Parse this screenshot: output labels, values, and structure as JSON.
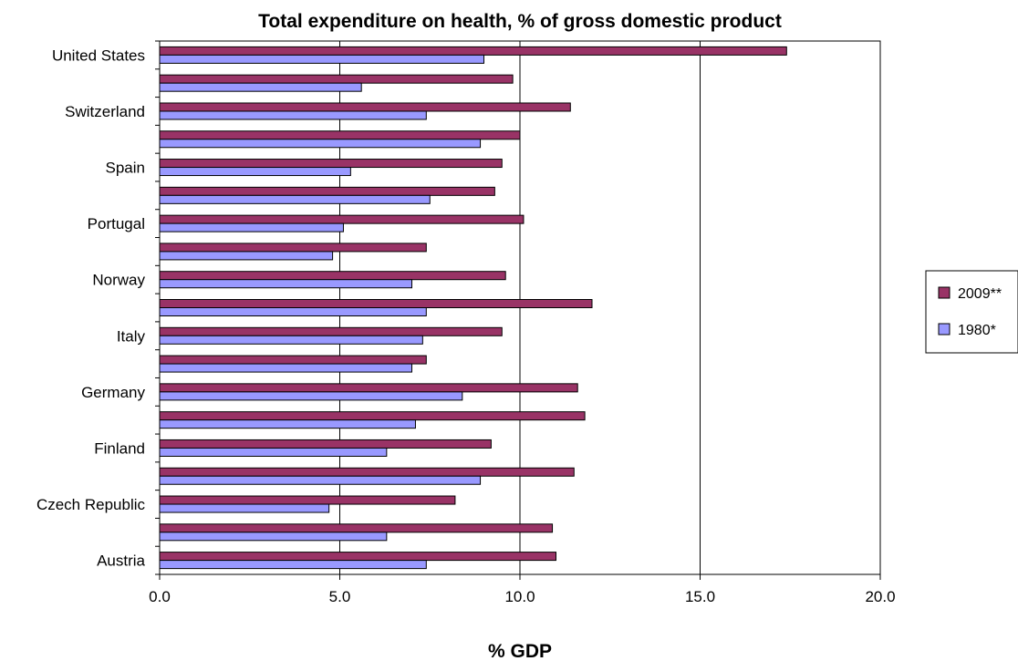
{
  "chart_data": {
    "type": "bar",
    "orientation": "horizontal",
    "title": "Total expenditure on health, % of gross domestic product",
    "xlabel": "% GDP",
    "ylabel": "",
    "xlim": [
      0,
      20
    ],
    "x_ticks": [
      "0.0",
      "5.0",
      "10.0",
      "15.0",
      "20.0"
    ],
    "gridlines": "vertical",
    "legend_position": "right",
    "categories_top_to_bottom": [
      "United States",
      "",
      "Switzerland",
      "",
      "Spain",
      "",
      "Portugal",
      "",
      "Norway",
      "",
      "Italy",
      "",
      "Germany",
      "",
      "Finland",
      "",
      "Czech Republic",
      "",
      "Austria"
    ],
    "series": [
      {
        "name": "2009**",
        "color": "#993366",
        "values": [
          17.4,
          9.8,
          11.4,
          10.0,
          9.5,
          9.3,
          10.1,
          7.4,
          9.6,
          12.0,
          9.5,
          7.4,
          11.6,
          11.8,
          9.2,
          11.5,
          8.2,
          10.9,
          11.0
        ]
      },
      {
        "name": "1980*",
        "color": "#9999ff",
        "values": [
          9.0,
          5.6,
          7.4,
          8.9,
          5.3,
          7.5,
          5.1,
          4.8,
          7.0,
          7.4,
          7.3,
          7.0,
          8.4,
          7.1,
          6.3,
          8.9,
          4.7,
          6.3,
          7.4
        ]
      }
    ]
  }
}
